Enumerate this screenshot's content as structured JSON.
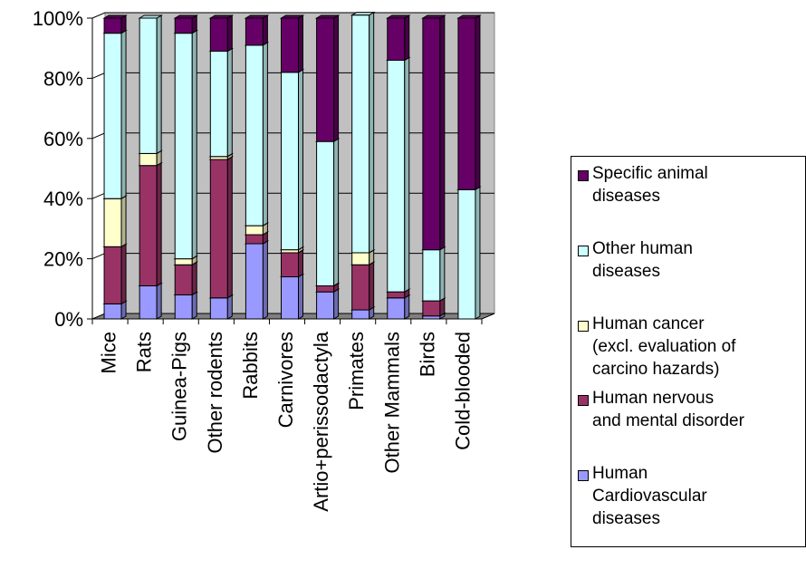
{
  "chart_data": {
    "type": "bar",
    "stacked": true,
    "normalized": true,
    "three_d": true,
    "categories": [
      "Mice",
      "Rats",
      "Guinea-Pigs",
      "Other rodents",
      "Rabbits",
      "Carnivores",
      "Artio+perissodactyla",
      "Primates",
      "Other Mammals",
      "Birds",
      "Cold-blooded"
    ],
    "y_ticks": [
      "0%",
      "20%",
      "40%",
      "60%",
      "80%",
      "100%"
    ],
    "ylim": [
      0,
      100
    ],
    "grid": true,
    "legend_position": "right",
    "series": [
      {
        "name": "Human Cardiovascular diseases",
        "color": "#9999ff",
        "values": [
          5,
          11,
          8,
          7,
          25,
          14,
          9,
          3,
          7,
          1,
          0
        ]
      },
      {
        "name": "Human nervous and mental disorder",
        "color": "#993366",
        "values": [
          19,
          40,
          10,
          46,
          3,
          8,
          2,
          15,
          2,
          5,
          0
        ]
      },
      {
        "name": "Human cancer (excl. evaluation of carcino hazards)",
        "color": "#ffffcc",
        "values": [
          16,
          4,
          2,
          1,
          3,
          1,
          0,
          4,
          0,
          0,
          0
        ]
      },
      {
        "name": "Other human diseases",
        "color": "#ccffff",
        "values": [
          55,
          45,
          75,
          35,
          60,
          59,
          48,
          79,
          77,
          17,
          43
        ]
      },
      {
        "name": "Specific animal diseases",
        "color": "#660066",
        "values": [
          5,
          0,
          5,
          11,
          9,
          18,
          41,
          0,
          14,
          77,
          57
        ]
      }
    ]
  },
  "legend": {
    "items": [
      {
        "label": "Specific animal\ndiseases",
        "color": "#660066"
      },
      {
        "label": "Other human\ndiseases",
        "color": "#ccffff"
      },
      {
        "label": "Human cancer\n(excl. evaluation of\ncarcino hazards)",
        "color": "#ffffcc"
      },
      {
        "label": "Human nervous\nand mental disorder",
        "color": "#993366"
      },
      {
        "label": "Human\nCardiovascular\ndiseases",
        "color": "#9999ff"
      }
    ]
  }
}
